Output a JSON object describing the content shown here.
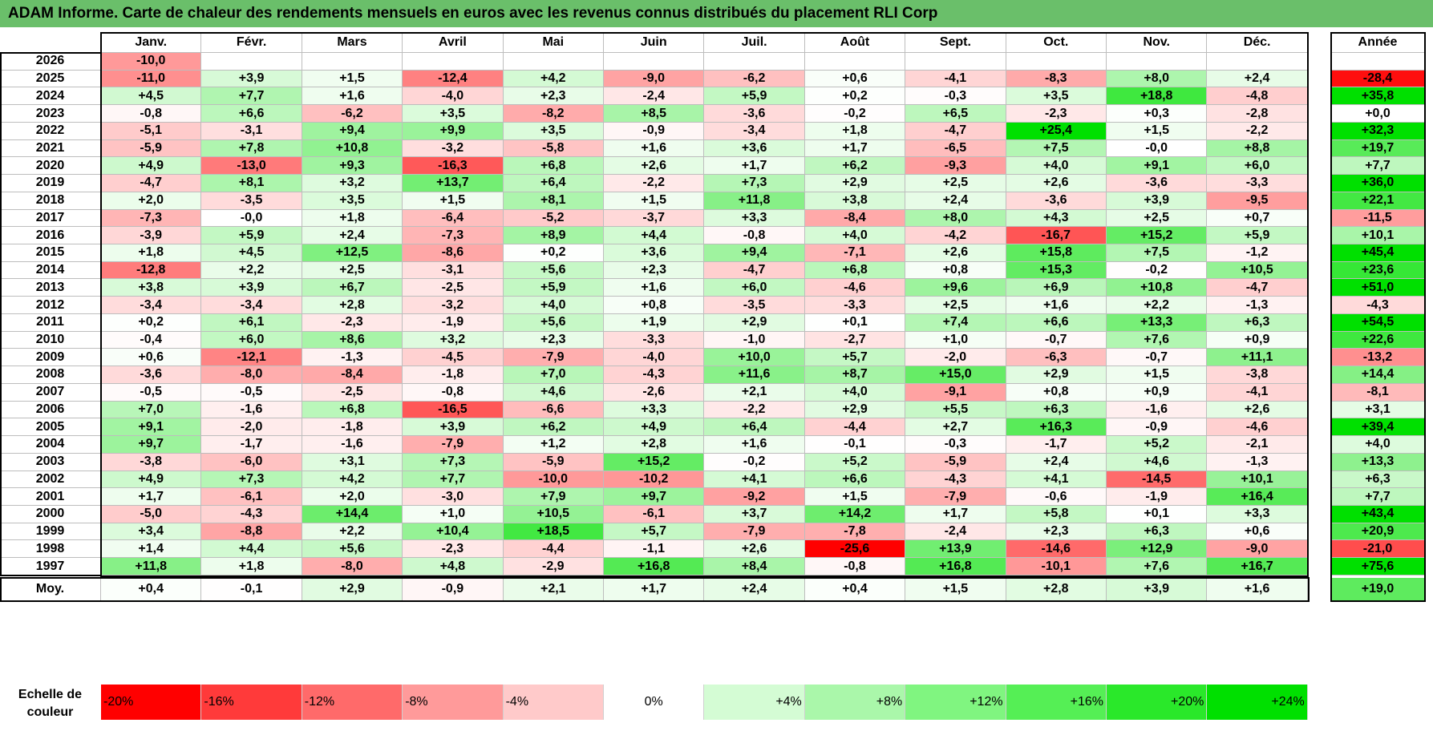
{
  "title": "ADAM Informe. Carte de chaleur des rendements mensuels en euros avec les revenus connus distribués du placement RLI Corp",
  "chart_data": {
    "type": "heatmap",
    "title": "ADAM Informe. Carte de chaleur des rendements mensuels en euros avec les revenus connus distribués du placement RLI Corp",
    "months": [
      "Janv.",
      "Févr.",
      "Mars",
      "Avril",
      "Mai",
      "Juin",
      "Juil.",
      "Août",
      "Sept.",
      "Oct.",
      "Nov.",
      "Déc."
    ],
    "annual_header": "Année",
    "rows": [
      {
        "year": "2026",
        "months": [
          "-10,0",
          "",
          "",
          "",
          "",
          "",
          "",
          "",
          "",
          "",
          "",
          ""
        ],
        "annual": ""
      },
      {
        "year": "2025",
        "months": [
          "-11,0",
          "+3,9",
          "+1,5",
          "-12,4",
          "+4,2",
          "-9,0",
          "-6,2",
          "+0,6",
          "-4,1",
          "-8,3",
          "+8,0",
          "+2,4"
        ],
        "annual": "-28,4"
      },
      {
        "year": "2024",
        "months": [
          "+4,5",
          "+7,7",
          "+1,6",
          "-4,0",
          "+2,3",
          "-2,4",
          "+5,9",
          "+0,2",
          "-0,3",
          "+3,5",
          "+18,8",
          "-4,8"
        ],
        "annual": "+35,8"
      },
      {
        "year": "2023",
        "months": [
          "-0,8",
          "+6,6",
          "-6,2",
          "+3,5",
          "-8,2",
          "+8,5",
          "-3,6",
          "-0,2",
          "+6,5",
          "-2,3",
          "+0,3",
          "-2,8"
        ],
        "annual": "+0,0"
      },
      {
        "year": "2022",
        "months": [
          "-5,1",
          "-3,1",
          "+9,4",
          "+9,9",
          "+3,5",
          "-0,9",
          "-3,4",
          "+1,8",
          "-4,7",
          "+25,4",
          "+1,5",
          "-2,2"
        ],
        "annual": "+32,3"
      },
      {
        "year": "2021",
        "months": [
          "-5,9",
          "+7,8",
          "+10,8",
          "-3,2",
          "-5,8",
          "+1,6",
          "+3,6",
          "+1,7",
          "-6,5",
          "+7,5",
          "-0,0",
          "+8,8"
        ],
        "annual": "+19,7"
      },
      {
        "year": "2020",
        "months": [
          "+4,9",
          "-13,0",
          "+9,3",
          "-16,3",
          "+6,8",
          "+2,6",
          "+1,7",
          "+6,2",
          "-9,3",
          "+4,0",
          "+9,1",
          "+6,0"
        ],
        "annual": "+7,7"
      },
      {
        "year": "2019",
        "months": [
          "-4,7",
          "+8,1",
          "+3,2",
          "+13,7",
          "+6,4",
          "-2,2",
          "+7,3",
          "+2,9",
          "+2,5",
          "+2,6",
          "-3,6",
          "-3,3"
        ],
        "annual": "+36,0"
      },
      {
        "year": "2018",
        "months": [
          "+2,0",
          "-3,5",
          "+3,5",
          "+1,5",
          "+8,1",
          "+1,5",
          "+11,8",
          "+3,8",
          "+2,4",
          "-3,6",
          "+3,9",
          "-9,5"
        ],
        "annual": "+22,1"
      },
      {
        "year": "2017",
        "months": [
          "-7,3",
          "-0,0",
          "+1,8",
          "-6,4",
          "-5,2",
          "-3,7",
          "+3,3",
          "-8,4",
          "+8,0",
          "+4,3",
          "+2,5",
          "+0,7"
        ],
        "annual": "-11,5"
      },
      {
        "year": "2016",
        "months": [
          "-3,9",
          "+5,9",
          "+2,4",
          "-7,3",
          "+8,9",
          "+4,4",
          "-0,8",
          "+4,0",
          "-4,2",
          "-16,7",
          "+15,2",
          "+5,9"
        ],
        "annual": "+10,1"
      },
      {
        "year": "2015",
        "months": [
          "+1,8",
          "+4,5",
          "+12,5",
          "-8,6",
          "+0,2",
          "+3,6",
          "+9,4",
          "-7,1",
          "+2,6",
          "+15,8",
          "+7,5",
          "-1,2"
        ],
        "annual": "+45,4"
      },
      {
        "year": "2014",
        "months": [
          "-12,8",
          "+2,2",
          "+2,5",
          "-3,1",
          "+5,6",
          "+2,3",
          "-4,7",
          "+6,8",
          "+0,8",
          "+15,3",
          "-0,2",
          "+10,5"
        ],
        "annual": "+23,6"
      },
      {
        "year": "2013",
        "months": [
          "+3,8",
          "+3,9",
          "+6,7",
          "-2,5",
          "+5,9",
          "+1,6",
          "+6,0",
          "-4,6",
          "+9,6",
          "+6,9",
          "+10,8",
          "-4,7"
        ],
        "annual": "+51,0"
      },
      {
        "year": "2012",
        "months": [
          "-3,4",
          "-3,4",
          "+2,8",
          "-3,2",
          "+4,0",
          "+0,8",
          "-3,5",
          "-3,3",
          "+2,5",
          "+1,6",
          "+2,2",
          "-1,3"
        ],
        "annual": "-4,3"
      },
      {
        "year": "2011",
        "months": [
          "+0,2",
          "+6,1",
          "-2,3",
          "-1,9",
          "+5,6",
          "+1,9",
          "+2,9",
          "+0,1",
          "+7,4",
          "+6,6",
          "+13,3",
          "+6,3"
        ],
        "annual": "+54,5"
      },
      {
        "year": "2010",
        "months": [
          "-0,4",
          "+6,0",
          "+8,6",
          "+3,2",
          "+2,3",
          "-3,3",
          "-1,0",
          "-2,7",
          "+1,0",
          "-0,7",
          "+7,6",
          "+0,9"
        ],
        "annual": "+22,6"
      },
      {
        "year": "2009",
        "months": [
          "+0,6",
          "-12,1",
          "-1,3",
          "-4,5",
          "-7,9",
          "-4,0",
          "+10,0",
          "+5,7",
          "-2,0",
          "-6,3",
          "-0,7",
          "+11,1"
        ],
        "annual": "-13,2"
      },
      {
        "year": "2008",
        "months": [
          "-3,6",
          "-8,0",
          "-8,4",
          "-1,8",
          "+7,0",
          "-4,3",
          "+11,6",
          "+8,7",
          "+15,0",
          "+2,9",
          "+1,5",
          "-3,8"
        ],
        "annual": "+14,4"
      },
      {
        "year": "2007",
        "months": [
          "-0,5",
          "-0,5",
          "-2,5",
          "-0,8",
          "+4,6",
          "-2,6",
          "+2,1",
          "+4,0",
          "-9,1",
          "+0,8",
          "+0,9",
          "-4,1"
        ],
        "annual": "-8,1"
      },
      {
        "year": "2006",
        "months": [
          "+7,0",
          "-1,6",
          "+6,8",
          "-16,5",
          "-6,6",
          "+3,3",
          "-2,2",
          "+2,9",
          "+5,5",
          "+6,3",
          "-1,6",
          "+2,6"
        ],
        "annual": "+3,1"
      },
      {
        "year": "2005",
        "months": [
          "+9,1",
          "-2,0",
          "-1,8",
          "+3,9",
          "+6,2",
          "+4,9",
          "+6,4",
          "-4,4",
          "+2,7",
          "+16,3",
          "-0,9",
          "-4,6"
        ],
        "annual": "+39,4"
      },
      {
        "year": "2004",
        "months": [
          "+9,7",
          "-1,7",
          "-1,6",
          "-7,9",
          "+1,2",
          "+2,8",
          "+1,6",
          "-0,1",
          "-0,3",
          "-1,7",
          "+5,2",
          "-2,1"
        ],
        "annual": "+4,0"
      },
      {
        "year": "2003",
        "months": [
          "-3,8",
          "-6,0",
          "+3,1",
          "+7,3",
          "-5,9",
          "+15,2",
          "-0,2",
          "+5,2",
          "-5,9",
          "+2,4",
          "+4,6",
          "-1,3"
        ],
        "annual": "+13,3"
      },
      {
        "year": "2002",
        "months": [
          "+4,9",
          "+7,3",
          "+4,2",
          "+7,7",
          "-10,0",
          "-10,2",
          "+4,1",
          "+6,6",
          "-4,3",
          "+4,1",
          "-14,5",
          "+10,1"
        ],
        "annual": "+6,3"
      },
      {
        "year": "2001",
        "months": [
          "+1,7",
          "-6,1",
          "+2,0",
          "-3,0",
          "+7,9",
          "+9,7",
          "-9,2",
          "+1,5",
          "-7,9",
          "-0,6",
          "-1,9",
          "+16,4"
        ],
        "annual": "+7,7"
      },
      {
        "year": "2000",
        "months": [
          "-5,0",
          "-4,3",
          "+14,4",
          "+1,0",
          "+10,5",
          "-6,1",
          "+3,7",
          "+14,2",
          "+1,7",
          "+5,8",
          "+0,1",
          "+3,3"
        ],
        "annual": "+43,4"
      },
      {
        "year": "1999",
        "months": [
          "+3,4",
          "-8,8",
          "+2,2",
          "+10,4",
          "+18,5",
          "+5,7",
          "-7,9",
          "-7,8",
          "-2,4",
          "+2,3",
          "+6,3",
          "+0,6"
        ],
        "annual": "+20,9"
      },
      {
        "year": "1998",
        "months": [
          "+1,4",
          "+4,4",
          "+5,6",
          "-2,3",
          "-4,4",
          "-1,1",
          "+2,6",
          "-25,6",
          "+13,9",
          "-14,6",
          "+12,9",
          "-9,0"
        ],
        "annual": "-21,0"
      },
      {
        "year": "1997",
        "months": [
          "+11,8",
          "+1,8",
          "-8,0",
          "+4,8",
          "-2,9",
          "+16,8",
          "+8,4",
          "-0,8",
          "+16,8",
          "-10,1",
          "+7,6",
          "+16,7"
        ],
        "annual": "+75,6"
      }
    ],
    "average": {
      "label": "Moy.",
      "months": [
        "+0,4",
        "-0,1",
        "+2,9",
        "-0,9",
        "+2,1",
        "+1,7",
        "+2,4",
        "+0,4",
        "+1,5",
        "+2,8",
        "+3,9",
        "+1,6"
      ],
      "annual": "+19,0"
    },
    "scale": {
      "label_line1": "Echelle de",
      "label_line2": "couleur",
      "stops": [
        {
          "label": "-20%",
          "color": "#ff0000",
          "align": "left"
        },
        {
          "label": "-16%",
          "color": "#ff3a3a",
          "align": "left"
        },
        {
          "label": "-12%",
          "color": "#ff6a6a",
          "align": "left"
        },
        {
          "label": "-8%",
          "color": "#ff9a9a",
          "align": "left"
        },
        {
          "label": "-4%",
          "color": "#ffcaca",
          "align": "left"
        },
        {
          "label": "0%",
          "color": "#ffffff",
          "align": "center"
        },
        {
          "label": "+4%",
          "color": "#d4fcd4",
          "align": "right"
        },
        {
          "label": "+8%",
          "color": "#aaf7aa",
          "align": "right"
        },
        {
          "label": "+12%",
          "color": "#80f580",
          "align": "right"
        },
        {
          "label": "+16%",
          "color": "#55ef55",
          "align": "right"
        },
        {
          "label": "+20%",
          "color": "#2ae82a",
          "align": "right"
        },
        {
          "label": "+24%",
          "color": "#00e000",
          "align": "right"
        }
      ]
    }
  }
}
